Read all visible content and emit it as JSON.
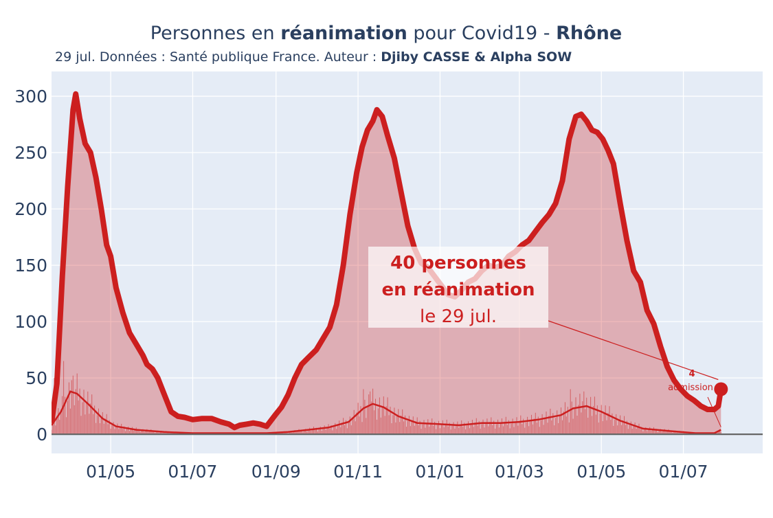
{
  "chart_data": {
    "type": "area",
    "title": {
      "prefix": "Personnes en ",
      "bold1": "réanimation",
      "middle": " pour Covid19 - ",
      "bold2": "Rhône"
    },
    "subtitle": {
      "text": "29 jul. Données : Santé publique France. Auteur : ",
      "author": "Djiby CASSE & Alpha SOW"
    },
    "x_range": [
      "2020-03-18",
      "2021-08-29"
    ],
    "ylim": [
      -17,
      322
    ],
    "y_ticks": [
      0,
      50,
      100,
      150,
      200,
      250,
      300
    ],
    "x_ticks": [
      {
        "date": "2020-05-01",
        "label": "01/05"
      },
      {
        "date": "2020-07-01",
        "label": "01/07"
      },
      {
        "date": "2020-09-01",
        "label": "01/09"
      },
      {
        "date": "2020-11-01",
        "label": "01/11"
      },
      {
        "date": "2021-01-01",
        "label": "01/01"
      },
      {
        "date": "2021-03-01",
        "label": "01/03"
      },
      {
        "date": "2021-05-01",
        "label": "01/05"
      },
      {
        "date": "2021-07-01",
        "label": "01/07"
      }
    ],
    "grid": true,
    "series": [
      {
        "role": "icu",
        "color": "#cc1f1f",
        "fill": "rgba(204,31,31,0.3)",
        "points": [
          [
            "2020-03-18",
            10
          ],
          [
            "2020-03-22",
            45
          ],
          [
            "2020-03-26",
            140
          ],
          [
            "2020-03-30",
            220
          ],
          [
            "2020-04-03",
            288
          ],
          [
            "2020-04-05",
            302
          ],
          [
            "2020-04-08",
            280
          ],
          [
            "2020-04-12",
            258
          ],
          [
            "2020-04-16",
            250
          ],
          [
            "2020-04-20",
            228
          ],
          [
            "2020-04-24",
            200
          ],
          [
            "2020-04-28",
            168
          ],
          [
            "2020-05-01",
            158
          ],
          [
            "2020-05-05",
            130
          ],
          [
            "2020-05-10",
            108
          ],
          [
            "2020-05-15",
            90
          ],
          [
            "2020-05-20",
            80
          ],
          [
            "2020-05-25",
            70
          ],
          [
            "2020-05-28",
            62
          ],
          [
            "2020-06-01",
            58
          ],
          [
            "2020-06-05",
            50
          ],
          [
            "2020-06-10",
            35
          ],
          [
            "2020-06-15",
            20
          ],
          [
            "2020-06-20",
            16
          ],
          [
            "2020-06-25",
            15
          ],
          [
            "2020-06-28",
            14
          ],
          [
            "2020-07-01",
            13
          ],
          [
            "2020-07-08",
            14
          ],
          [
            "2020-07-15",
            14
          ],
          [
            "2020-07-22",
            11
          ],
          [
            "2020-07-28",
            9
          ],
          [
            "2020-08-01",
            6
          ],
          [
            "2020-08-05",
            8
          ],
          [
            "2020-08-10",
            9
          ],
          [
            "2020-08-15",
            10
          ],
          [
            "2020-08-20",
            9
          ],
          [
            "2020-08-25",
            7
          ],
          [
            "2020-09-01",
            18
          ],
          [
            "2020-09-05",
            24
          ],
          [
            "2020-09-10",
            35
          ],
          [
            "2020-09-15",
            50
          ],
          [
            "2020-09-20",
            62
          ],
          [
            "2020-09-25",
            68
          ],
          [
            "2020-10-01",
            75
          ],
          [
            "2020-10-06",
            85
          ],
          [
            "2020-10-11",
            95
          ],
          [
            "2020-10-16",
            115
          ],
          [
            "2020-10-21",
            150
          ],
          [
            "2020-10-26",
            195
          ],
          [
            "2020-10-31",
            232
          ],
          [
            "2020-11-04",
            255
          ],
          [
            "2020-11-08",
            270
          ],
          [
            "2020-11-12",
            278
          ],
          [
            "2020-11-15",
            288
          ],
          [
            "2020-11-19",
            282
          ],
          [
            "2020-11-23",
            265
          ],
          [
            "2020-11-28",
            245
          ],
          [
            "2020-12-03",
            215
          ],
          [
            "2020-12-08",
            185
          ],
          [
            "2020-12-13",
            165
          ],
          [
            "2020-12-18",
            152
          ],
          [
            "2020-12-23",
            148
          ],
          [
            "2020-12-28",
            140
          ],
          [
            "2021-01-02",
            132
          ],
          [
            "2021-01-07",
            124
          ],
          [
            "2021-01-12",
            122
          ],
          [
            "2021-01-17",
            128
          ],
          [
            "2021-01-22",
            135
          ],
          [
            "2021-01-27",
            138
          ],
          [
            "2021-02-01",
            145
          ],
          [
            "2021-02-06",
            150
          ],
          [
            "2021-02-11",
            148
          ],
          [
            "2021-02-16",
            150
          ],
          [
            "2021-02-21",
            158
          ],
          [
            "2021-02-26",
            162
          ],
          [
            "2021-03-03",
            168
          ],
          [
            "2021-03-08",
            172
          ],
          [
            "2021-03-13",
            180
          ],
          [
            "2021-03-18",
            188
          ],
          [
            "2021-03-23",
            195
          ],
          [
            "2021-03-28",
            205
          ],
          [
            "2021-04-02",
            225
          ],
          [
            "2021-04-07",
            262
          ],
          [
            "2021-04-12",
            282
          ],
          [
            "2021-04-16",
            284
          ],
          [
            "2021-04-20",
            278
          ],
          [
            "2021-04-24",
            270
          ],
          [
            "2021-04-28",
            268
          ],
          [
            "2021-05-02",
            262
          ],
          [
            "2021-05-06",
            252
          ],
          [
            "2021-05-10",
            240
          ],
          [
            "2021-05-15",
            205
          ],
          [
            "2021-05-20",
            172
          ],
          [
            "2021-05-25",
            145
          ],
          [
            "2021-05-30",
            135
          ],
          [
            "2021-06-04",
            110
          ],
          [
            "2021-06-09",
            98
          ],
          [
            "2021-06-14",
            78
          ],
          [
            "2021-06-19",
            60
          ],
          [
            "2021-06-24",
            48
          ],
          [
            "2021-06-29",
            40
          ],
          [
            "2021-07-04",
            34
          ],
          [
            "2021-07-09",
            30
          ],
          [
            "2021-07-14",
            25
          ],
          [
            "2021-07-19",
            22
          ],
          [
            "2021-07-24",
            22
          ],
          [
            "2021-07-27",
            25
          ],
          [
            "2021-07-29",
            40
          ]
        ]
      },
      {
        "role": "admissions-smooth",
        "color": "#cc1f1f",
        "points": [
          [
            "2020-03-18",
            8
          ],
          [
            "2020-03-25",
            20
          ],
          [
            "2020-04-01",
            38
          ],
          [
            "2020-04-06",
            36
          ],
          [
            "2020-04-15",
            26
          ],
          [
            "2020-04-25",
            14
          ],
          [
            "2020-05-05",
            7
          ],
          [
            "2020-05-20",
            4
          ],
          [
            "2020-06-10",
            2
          ],
          [
            "2020-07-01",
            1
          ],
          [
            "2020-08-01",
            1
          ],
          [
            "2020-08-25",
            1
          ],
          [
            "2020-09-10",
            2
          ],
          [
            "2020-09-25",
            4
          ],
          [
            "2020-10-10",
            6
          ],
          [
            "2020-10-25",
            11
          ],
          [
            "2020-11-05",
            23
          ],
          [
            "2020-11-12",
            27
          ],
          [
            "2020-11-20",
            24
          ],
          [
            "2020-12-01",
            16
          ],
          [
            "2020-12-15",
            10
          ],
          [
            "2021-01-01",
            9
          ],
          [
            "2021-01-15",
            8
          ],
          [
            "2021-02-01",
            10
          ],
          [
            "2021-02-15",
            10
          ],
          [
            "2021-03-01",
            11
          ],
          [
            "2021-03-15",
            13
          ],
          [
            "2021-04-01",
            17
          ],
          [
            "2021-04-10",
            23
          ],
          [
            "2021-04-20",
            25
          ],
          [
            "2021-05-01",
            20
          ],
          [
            "2021-05-15",
            12
          ],
          [
            "2021-06-01",
            5
          ],
          [
            "2021-06-20",
            3
          ],
          [
            "2021-07-10",
            1
          ],
          [
            "2021-07-24",
            1
          ],
          [
            "2021-07-29",
            4
          ]
        ]
      }
    ],
    "admissions_bars": {
      "color": "rgba(204,31,31,0.55)",
      "spikes": [
        [
          "2020-03-20",
          50
        ],
        [
          "2020-03-27",
          65
        ],
        [
          "2020-04-02",
          48
        ],
        [
          "2020-04-07",
          30
        ],
        [
          "2020-11-05",
          40
        ],
        [
          "2020-11-10",
          38
        ],
        [
          "2021-04-08",
          40
        ],
        [
          "2021-04-18",
          38
        ]
      ]
    },
    "annotation": {
      "line1": "40 personnes",
      "line2": "en réanimation",
      "line3": "le 29 jul.",
      "point_date": "2021-07-29",
      "point_value": 40,
      "secondary_line1": "4",
      "secondary_line2": "admission"
    }
  }
}
